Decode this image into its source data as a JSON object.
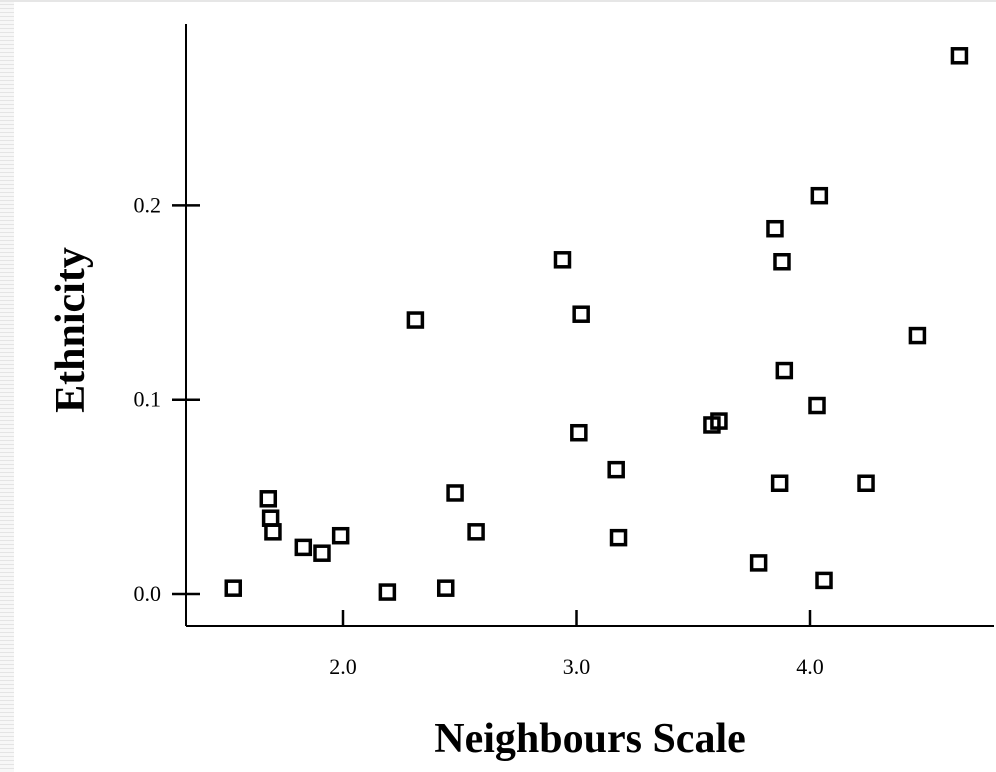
{
  "chart_data": {
    "type": "scatter",
    "title": "",
    "xlabel": "Neighbours Scale",
    "ylabel": "Ethnicity",
    "xlim": [
      1.33,
      4.8
    ],
    "ylim": [
      -0.016,
      0.29
    ],
    "xticks": [
      2.0,
      3.0,
      4.0
    ],
    "xtick_labels": [
      "2.0",
      "3.0",
      "4.0"
    ],
    "yticks": [
      0.0,
      0.1,
      0.2
    ],
    "ytick_labels": [
      "0.0",
      "0.1",
      "0.2"
    ],
    "grid": false,
    "marker": "hollow-square",
    "points": [
      {
        "x": 1.53,
        "y": 0.003
      },
      {
        "x": 1.68,
        "y": 0.049
      },
      {
        "x": 1.69,
        "y": 0.039
      },
      {
        "x": 1.7,
        "y": 0.032
      },
      {
        "x": 1.83,
        "y": 0.024
      },
      {
        "x": 1.91,
        "y": 0.021
      },
      {
        "x": 1.99,
        "y": 0.03
      },
      {
        "x": 2.19,
        "y": 0.001
      },
      {
        "x": 2.31,
        "y": 0.141
      },
      {
        "x": 2.44,
        "y": 0.003
      },
      {
        "x": 2.48,
        "y": 0.052
      },
      {
        "x": 2.57,
        "y": 0.032
      },
      {
        "x": 2.94,
        "y": 0.172
      },
      {
        "x": 3.01,
        "y": 0.083
      },
      {
        "x": 3.02,
        "y": 0.144
      },
      {
        "x": 3.17,
        "y": 0.064
      },
      {
        "x": 3.18,
        "y": 0.029
      },
      {
        "x": 3.58,
        "y": 0.087
      },
      {
        "x": 3.61,
        "y": 0.089
      },
      {
        "x": 3.78,
        "y": 0.016
      },
      {
        "x": 3.85,
        "y": 0.188
      },
      {
        "x": 3.87,
        "y": 0.057
      },
      {
        "x": 3.88,
        "y": 0.171
      },
      {
        "x": 3.89,
        "y": 0.115
      },
      {
        "x": 4.03,
        "y": 0.097
      },
      {
        "x": 4.04,
        "y": 0.205
      },
      {
        "x": 4.06,
        "y": 0.007
      },
      {
        "x": 4.24,
        "y": 0.057
      },
      {
        "x": 4.46,
        "y": 0.133
      },
      {
        "x": 4.64,
        "y": 0.277
      }
    ]
  }
}
